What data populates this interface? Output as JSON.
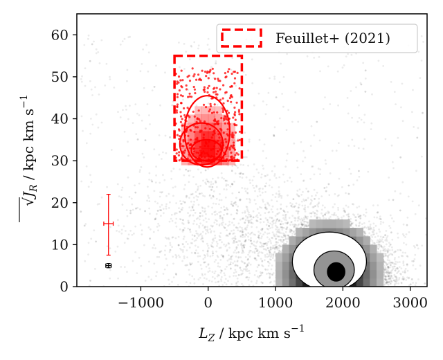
{
  "chart_data": {
    "type": "scatter",
    "xlabel": "L_Z / kpc km s^{-1}",
    "ylabel": "√J_R / kpc km s^{-1}",
    "xlim": [
      -1950,
      3250
    ],
    "ylim": [
      0,
      65
    ],
    "xticks": [
      -1000,
      0,
      1000,
      2000,
      3000
    ],
    "xtick_labels": [
      "−1000",
      "0",
      "1000",
      "2000",
      "3000"
    ],
    "yticks": [
      0,
      10,
      20,
      30,
      40,
      50,
      60
    ],
    "ytick_labels": [
      "0",
      "10",
      "20",
      "30",
      "40",
      "50",
      "60"
    ],
    "grid": false,
    "legend_position": "top-right",
    "legend": [
      {
        "label": "Feuillet+ (2021)",
        "style": "dashed",
        "color": "#ff0000"
      }
    ],
    "selection_box": {
      "x_range": [
        -500,
        500
      ],
      "y_range": [
        30,
        55
      ],
      "color": "#ff0000",
      "style": "dashed"
    },
    "series": [
      {
        "kind": "background-scatter",
        "color": "#000000",
        "density_centre": {
          "lz": 1900,
          "sqrt_jr": 4
        },
        "contour_levels_sqrt_jr_at_peak": [
          [
            1700,
            2100,
            2,
            7
          ],
          [
            1550,
            2300,
            1,
            10
          ],
          [
            1300,
            2450,
            0.5,
            13
          ]
        ]
      },
      {
        "kind": "selected-scatter",
        "color": "#ff0000",
        "density_centre": {
          "lz": -50,
          "sqrt_jr": 32
        },
        "contour_levels": [
          {
            "lz_range": [
              -350,
              320
            ],
            "sqrt_jr_range": [
              28.5,
              45.5
            ]
          },
          {
            "lz_range": [
              -420,
              220
            ],
            "sqrt_jr_range": [
              29,
              39
            ]
          },
          {
            "lz_range": [
              -250,
              200
            ],
            "sqrt_jr_range": [
              30,
              35
            ]
          }
        ]
      }
    ],
    "error_bars": [
      {
        "color": "#ff0000",
        "lz": -1480,
        "sqrt_jr": 15,
        "lz_err": 70,
        "sqrt_jr_err_low": 7.5,
        "sqrt_jr_err_high": 7
      },
      {
        "color": "#000000",
        "lz": -1480,
        "sqrt_jr": 5,
        "lz_err": 40,
        "sqrt_jr_err_low": 0.5,
        "sqrt_jr_err_high": 0.5
      }
    ]
  }
}
